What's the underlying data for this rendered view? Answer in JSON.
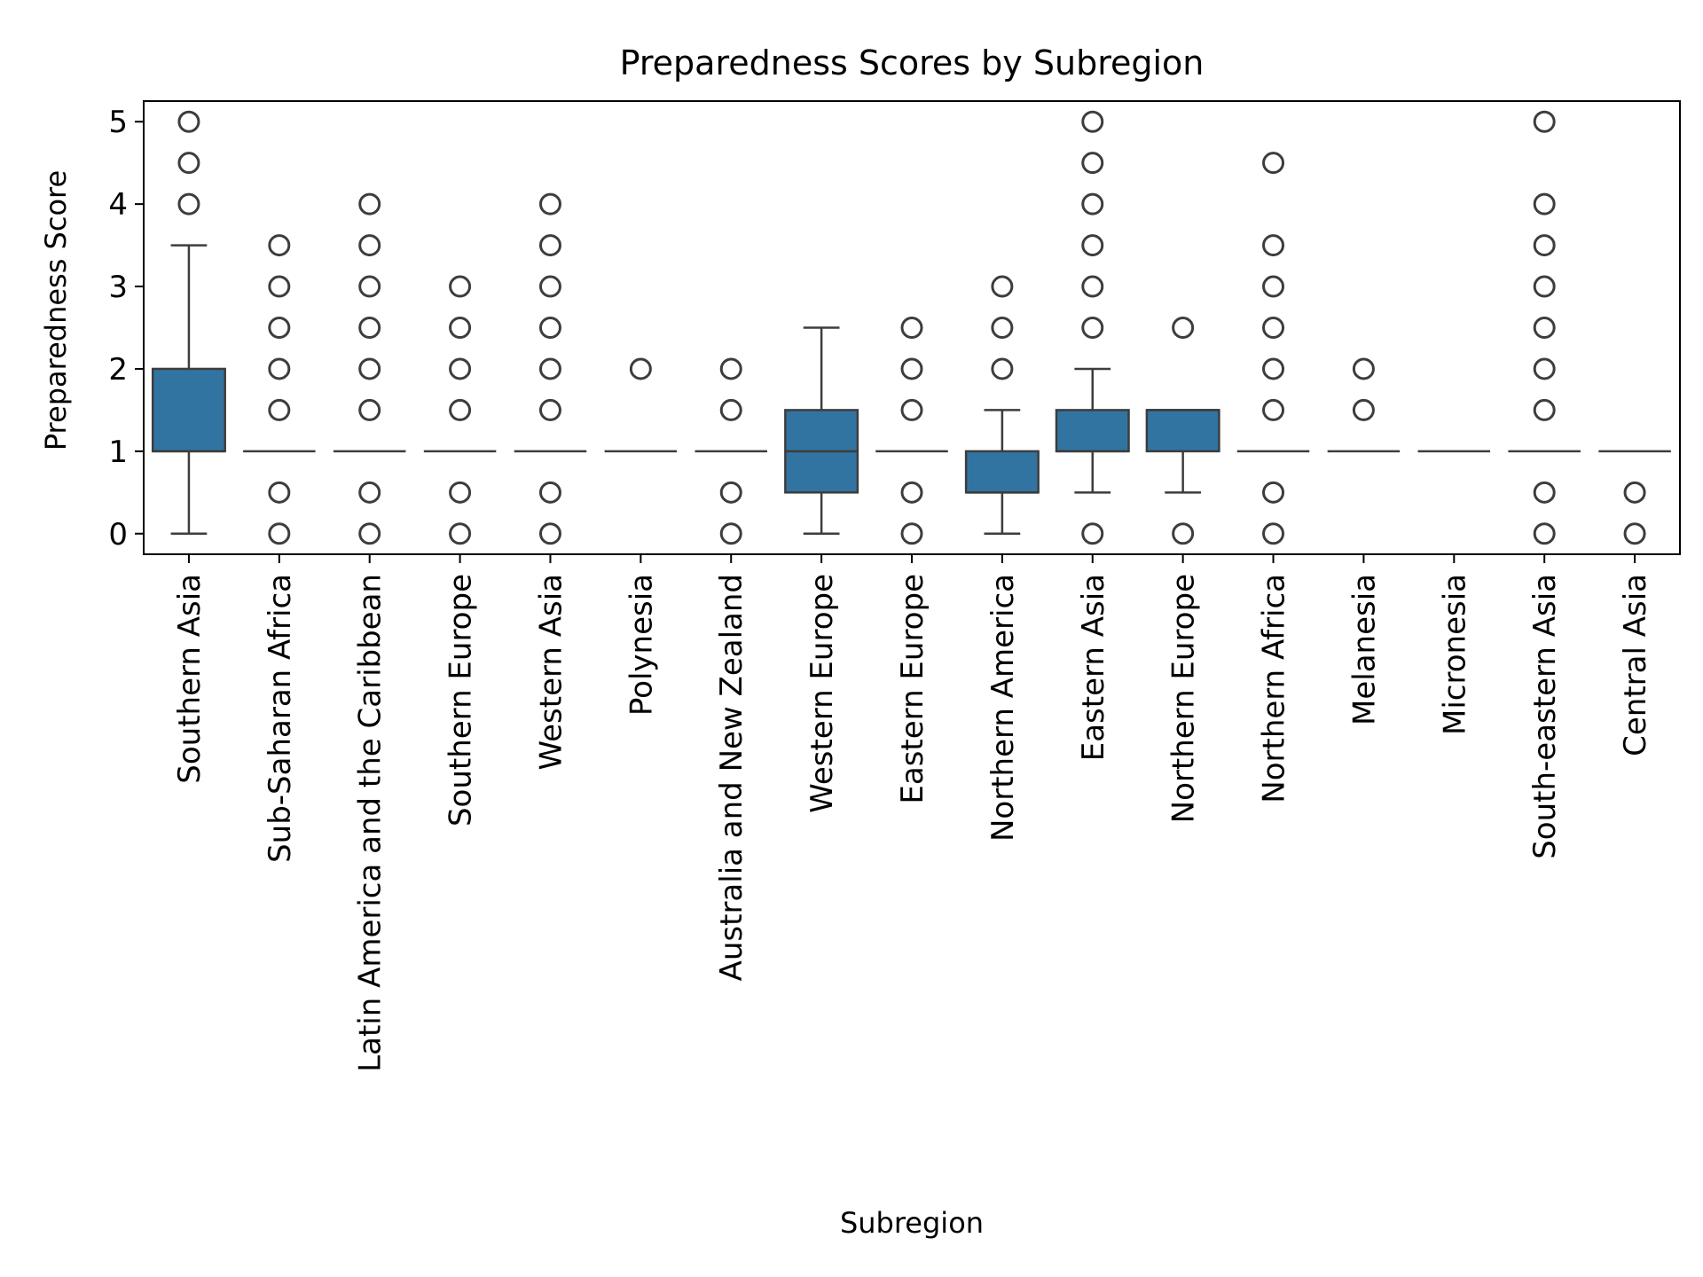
{
  "chart_data": {
    "type": "box",
    "title": "Preparedness Scores by Subregion",
    "xlabel": "Subregion",
    "ylabel": "Preparedness Score",
    "ylim": [
      -0.25,
      5.25
    ],
    "yticks": [
      0,
      1,
      2,
      3,
      4,
      5
    ],
    "grid": false,
    "legend": "none",
    "box_color": "#3274a1",
    "line_color": "#3d3d3d",
    "categories": [
      "Southern Asia",
      "Sub-Saharan Africa",
      "Latin America and the Caribbean",
      "Southern Europe",
      "Western Asia",
      "Polynesia",
      "Australia and New Zealand",
      "Western Europe",
      "Eastern Europe",
      "Northern America",
      "Eastern Asia",
      "Northern Europe",
      "Northern Africa",
      "Melanesia",
      "Micronesia",
      "South-eastern Asia",
      "Central Asia"
    ],
    "boxes": [
      {
        "whisker_low": 0,
        "q1": 1,
        "median": 1,
        "q3": 2,
        "whisker_high": 3.5,
        "outliers": [
          4,
          4.5,
          5
        ]
      },
      {
        "whisker_low": 1,
        "q1": 1,
        "median": 1,
        "q3": 1,
        "whisker_high": 1,
        "outliers": [
          0,
          0.5,
          1.5,
          2,
          2.5,
          3,
          3.5
        ]
      },
      {
        "whisker_low": 1,
        "q1": 1,
        "median": 1,
        "q3": 1,
        "whisker_high": 1,
        "outliers": [
          0,
          0.5,
          1.5,
          2,
          2.5,
          3,
          3.5,
          4
        ]
      },
      {
        "whisker_low": 1,
        "q1": 1,
        "median": 1,
        "q3": 1,
        "whisker_high": 1,
        "outliers": [
          0,
          0.5,
          1.5,
          2,
          2.5,
          3
        ]
      },
      {
        "whisker_low": 1,
        "q1": 1,
        "median": 1,
        "q3": 1,
        "whisker_high": 1,
        "outliers": [
          0,
          0.5,
          1.5,
          2,
          2.5,
          3,
          3.5,
          4
        ]
      },
      {
        "whisker_low": 1,
        "q1": 1,
        "median": 1,
        "q3": 1,
        "whisker_high": 1,
        "outliers": [
          2
        ]
      },
      {
        "whisker_low": 1,
        "q1": 1,
        "median": 1,
        "q3": 1,
        "whisker_high": 1,
        "outliers": [
          0,
          0.5,
          1.5,
          2
        ]
      },
      {
        "whisker_low": 0,
        "q1": 0.5,
        "median": 1,
        "q3": 1.5,
        "whisker_high": 2.5,
        "outliers": []
      },
      {
        "whisker_low": 1,
        "q1": 1,
        "median": 1,
        "q3": 1,
        "whisker_high": 1,
        "outliers": [
          0,
          0.5,
          1.5,
          2,
          2.5
        ]
      },
      {
        "whisker_low": 0,
        "q1": 0.5,
        "median": 0.5,
        "q3": 1,
        "whisker_high": 1.5,
        "outliers": [
          2,
          2.5,
          3
        ]
      },
      {
        "whisker_low": 0.5,
        "q1": 1,
        "median": 1,
        "q3": 1.5,
        "whisker_high": 2,
        "outliers": [
          0,
          2.5,
          3,
          3.5,
          4,
          4.5,
          5
        ]
      },
      {
        "whisker_low": 0.5,
        "q1": 1,
        "median": 1.5,
        "q3": 1.5,
        "whisker_high": 1.5,
        "outliers": [
          0,
          2.5
        ]
      },
      {
        "whisker_low": 1,
        "q1": 1,
        "median": 1,
        "q3": 1,
        "whisker_high": 1,
        "outliers": [
          0,
          0.5,
          1.5,
          2,
          2.5,
          3,
          3.5,
          4.5
        ]
      },
      {
        "whisker_low": 1,
        "q1": 1,
        "median": 1,
        "q3": 1,
        "whisker_high": 1,
        "outliers": [
          1.5,
          2
        ]
      },
      {
        "whisker_low": 1,
        "q1": 1,
        "median": 1,
        "q3": 1,
        "whisker_high": 1,
        "outliers": []
      },
      {
        "whisker_low": 1,
        "q1": 1,
        "median": 1,
        "q3": 1,
        "whisker_high": 1,
        "outliers": [
          0,
          0.5,
          1.5,
          2,
          2.5,
          3,
          3.5,
          4,
          5
        ]
      },
      {
        "whisker_low": 1,
        "q1": 1,
        "median": 1,
        "q3": 1,
        "whisker_high": 1,
        "outliers": [
          0,
          0.5
        ]
      }
    ]
  }
}
